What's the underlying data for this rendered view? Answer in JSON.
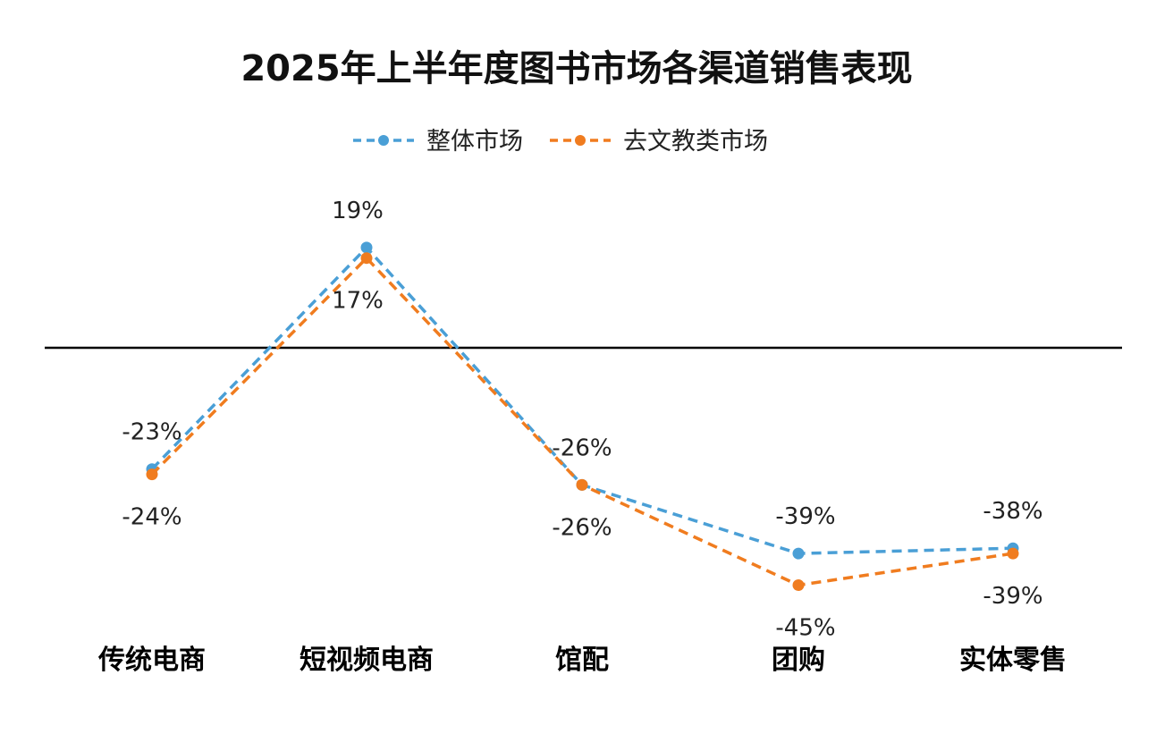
{
  "chart_data": {
    "type": "line",
    "title": "2025年上半年度图书市场各渠道销售表现",
    "categories": [
      "传统电商",
      "短视频电商",
      "馆配",
      "团购",
      "实体零售"
    ],
    "series": [
      {
        "name": "整体市场",
        "values": [
          -23,
          19,
          -26,
          -39,
          -38
        ],
        "labels": [
          "-23%",
          "19%",
          "-26%",
          "-39%",
          "-38%"
        ],
        "color": "#4a9fd6",
        "line_style": "dashed",
        "marker": "circle"
      },
      {
        "name": "去文教类市场",
        "values": [
          -24,
          17,
          -26,
          -45,
          -39
        ],
        "labels": [
          "-24%",
          "17%",
          "-26%",
          "-45%",
          "-39%"
        ],
        "color": "#f07c1f",
        "line_style": "dashed",
        "marker": "circle"
      }
    ],
    "ylim": [
      -50,
      25
    ],
    "baseline": 0,
    "legend": "top-center",
    "grid": false,
    "y_axis_visible": false
  }
}
